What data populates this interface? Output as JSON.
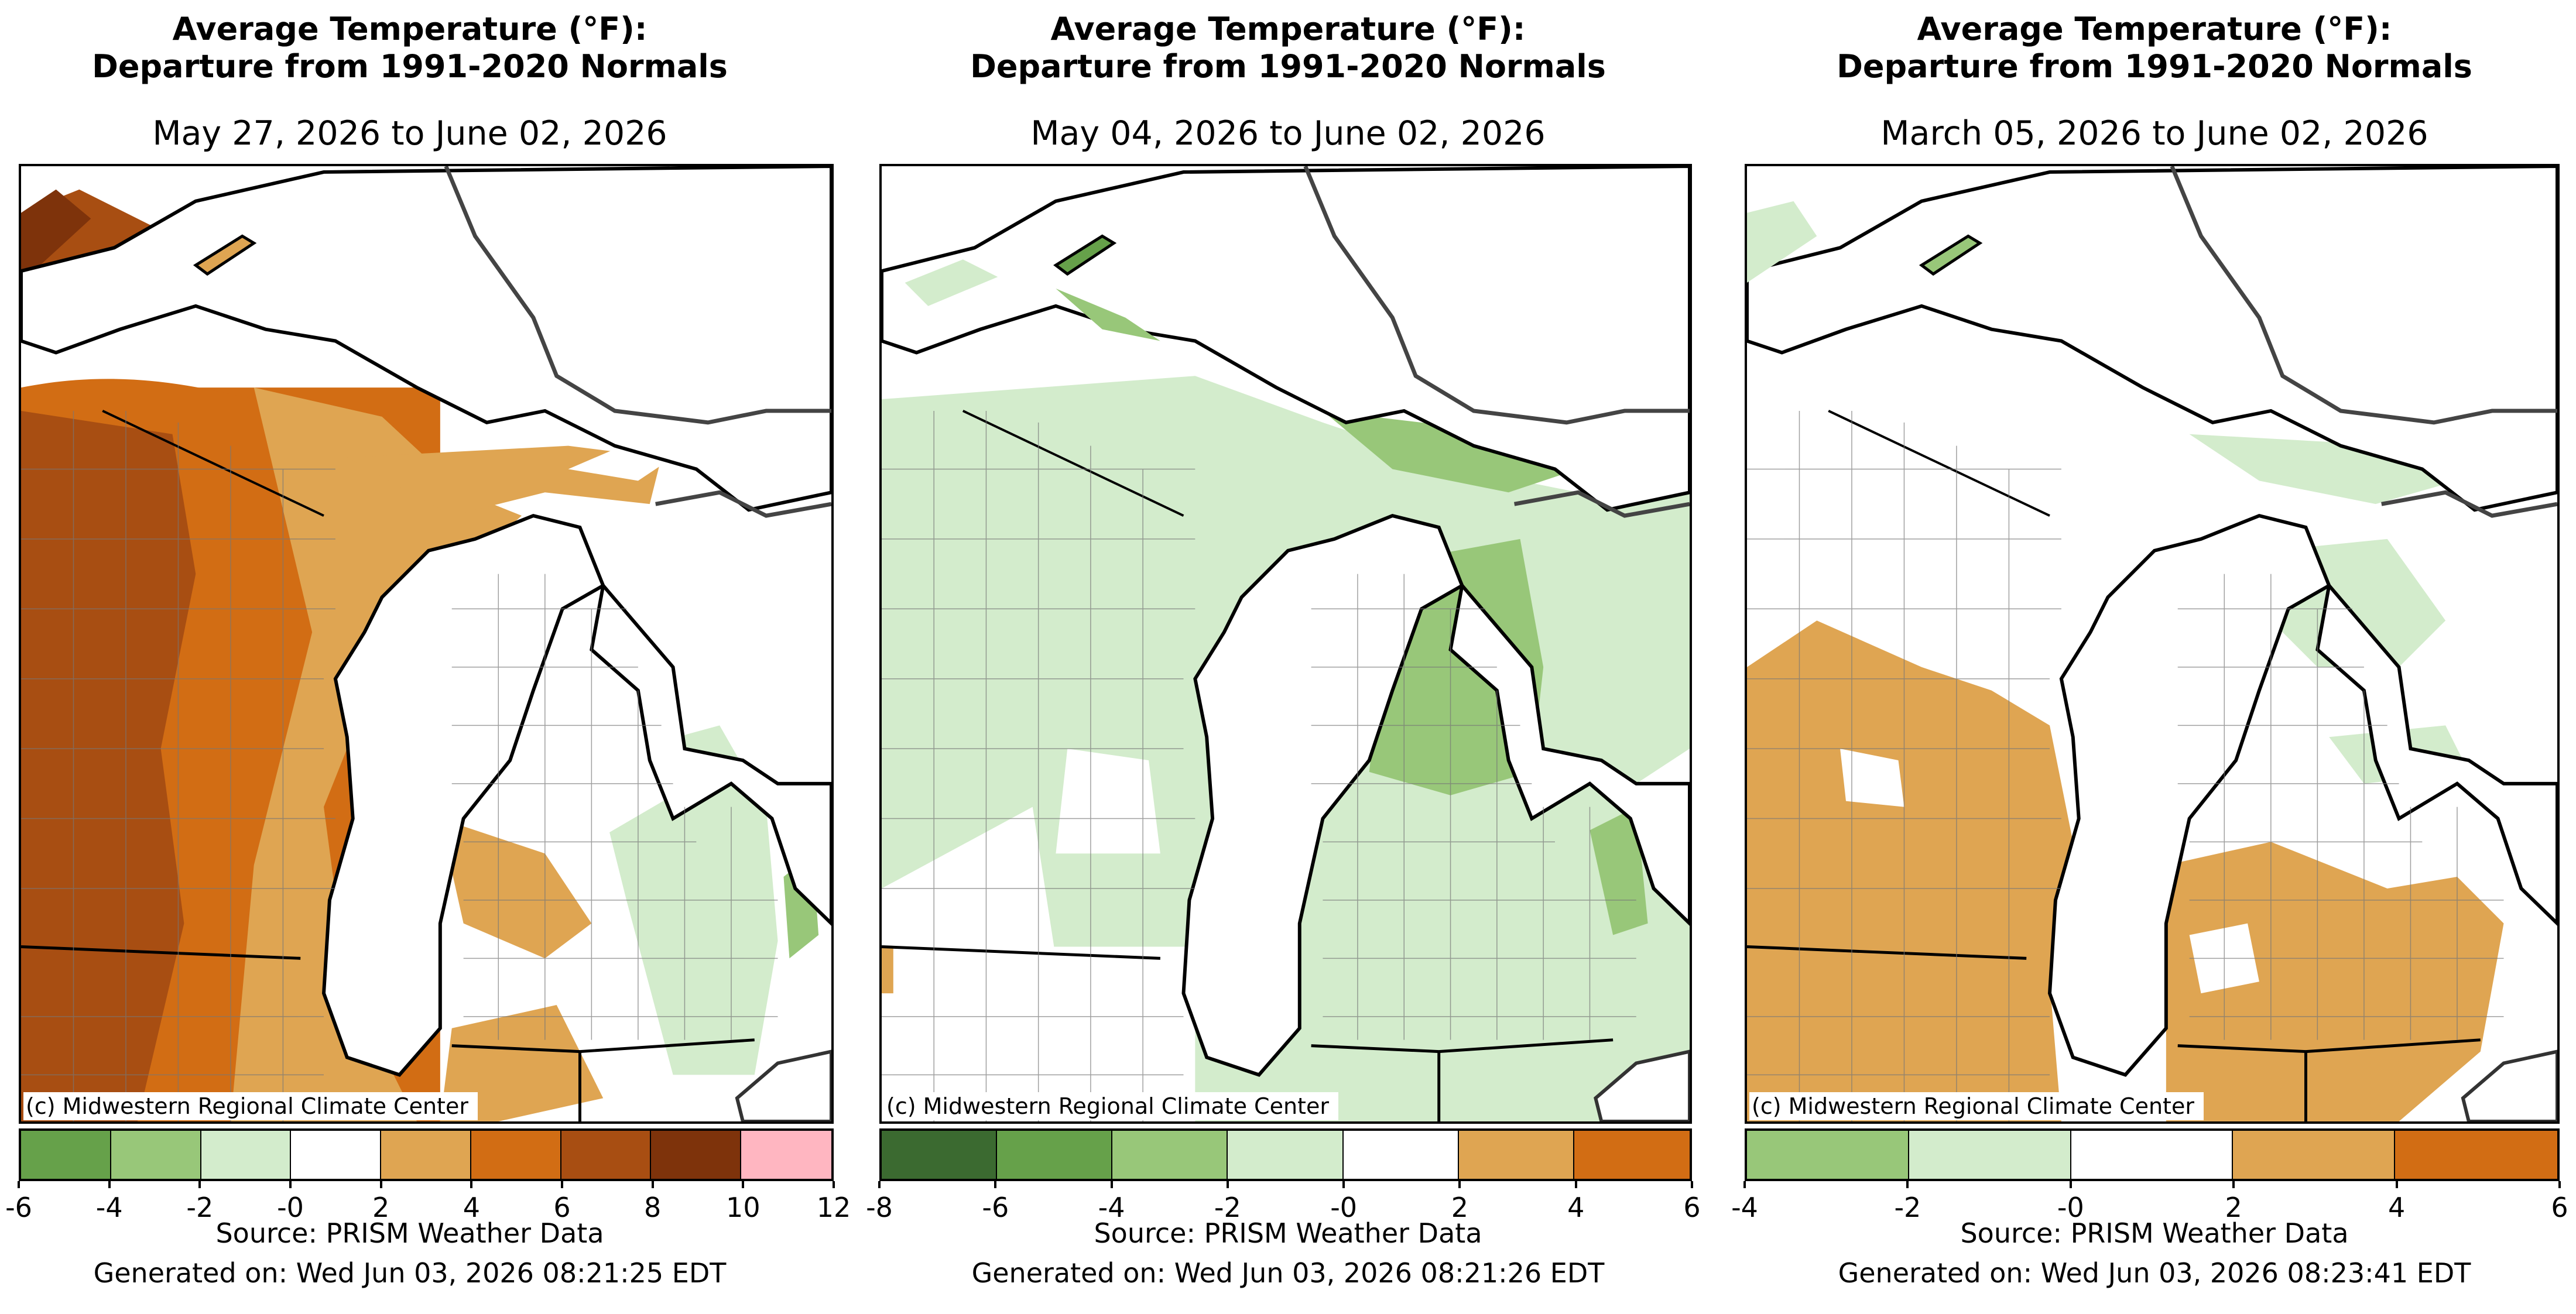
{
  "panels": [
    {
      "title_line1": "Average Temperature (°F):",
      "title_line2": "Departure from 1991-2020 Normals",
      "date_range": "May 27, 2026 to June 02, 2026",
      "credit": "(c) Midwestern Regional Climate Center",
      "source": "Source: PRISM Weather Data",
      "generated": "Generated on: Wed Jun 03, 2026 08:21:25 EDT",
      "legend": {
        "ticks": [
          "-6",
          "-4",
          "-2",
          "-0",
          "2",
          "4",
          "6",
          "8",
          "10",
          "12"
        ],
        "colors": [
          "#66a14a",
          "#98c779",
          "#d3eccc",
          "#ffffff",
          "#dfa552",
          "#d26d14",
          "#a84e12",
          "#7e330b",
          "#ffb6c1"
        ]
      }
    },
    {
      "title_line1": "Average Temperature (°F):",
      "title_line2": "Departure from 1991-2020 Normals",
      "date_range": "May 04, 2026 to June 02, 2026",
      "credit": "(c) Midwestern Regional Climate Center",
      "source": "Source: PRISM Weather Data",
      "generated": "Generated on: Wed Jun 03, 2026 08:21:26 EDT",
      "legend": {
        "ticks": [
          "-8",
          "-6",
          "-4",
          "-2",
          "-0",
          "2",
          "4",
          "6"
        ],
        "colors": [
          "#3b6a30",
          "#66a14a",
          "#98c779",
          "#d3eccc",
          "#ffffff",
          "#dfa552",
          "#d26d14"
        ]
      }
    },
    {
      "title_line1": "Average Temperature (°F):",
      "title_line2": "Departure from 1991-2020 Normals",
      "date_range": "March 05, 2026 to June 02, 2026",
      "credit": "(c) Midwestern Regional Climate Center",
      "source": "Source: PRISM Weather Data",
      "generated": "Generated on: Wed Jun 03, 2026 08:23:41 EDT",
      "legend": {
        "ticks": [
          "-4",
          "-2",
          "-0",
          "2",
          "4",
          "6"
        ],
        "colors": [
          "#98c779",
          "#d3eccc",
          "#ffffff",
          "#dfa552",
          "#d26d14"
        ]
      }
    }
  ]
}
